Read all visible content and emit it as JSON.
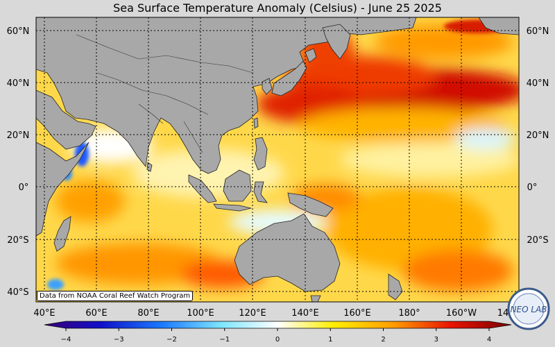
{
  "title": "Sea Surface Temperature Anomaly (Celsius) - June 25 2025",
  "credit": "Data from NOAA Coral Reef Watch Program",
  "logo_text": "NEO LAB",
  "lat_labels_left": [
    "60°N",
    "40°N",
    "20°N",
    "0°",
    "20°S",
    "40°S"
  ],
  "lat_labels_right": [
    "60°N",
    "40°N",
    "20°N",
    "0°",
    "20°S"
  ],
  "lon_labels": [
    "40°E",
    "60°E",
    "80°E",
    "100°E",
    "120°E",
    "140°E",
    "160°E",
    "180°",
    "160°W",
    "14"
  ],
  "colorbar": {
    "ticks": [
      "−4",
      "−3",
      "−2",
      "−1",
      "0",
      "1",
      "2",
      "3",
      "4"
    ],
    "min": -4,
    "max": 4
  },
  "colors": {
    "land": "#a8a8a8",
    "ocean_neutral": "#ffffff",
    "background": "#d9d9d9"
  }
}
